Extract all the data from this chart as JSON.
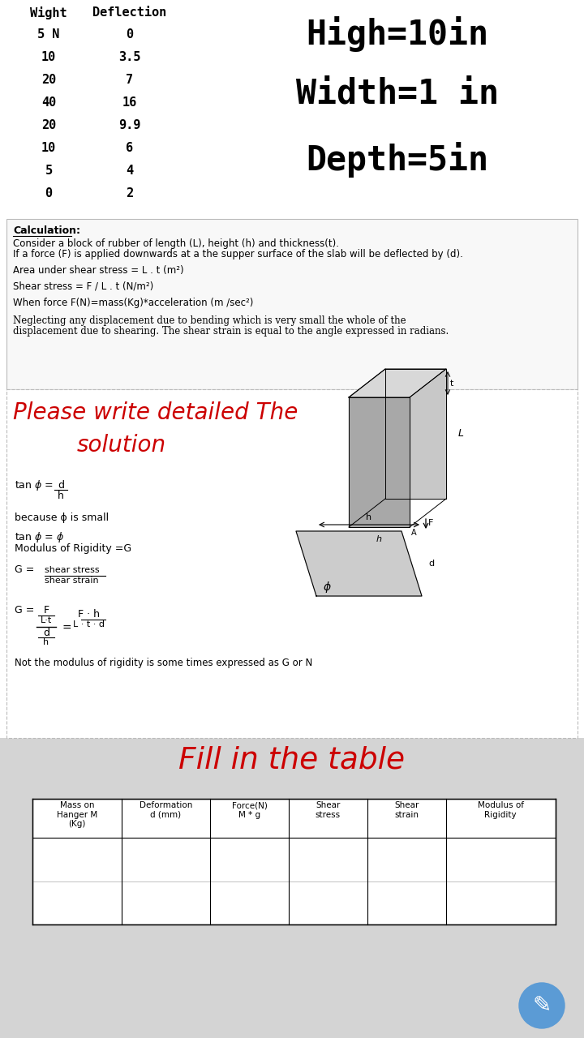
{
  "bg_color": "#ffffff",
  "header_col1": "Wight",
  "header_col2": "Deflection",
  "table_data": [
    [
      "5 N",
      "0"
    ],
    [
      "10",
      "3.5"
    ],
    [
      "20",
      "7"
    ],
    [
      "40",
      "16"
    ],
    [
      "20",
      "9.9"
    ],
    [
      "10",
      "6"
    ],
    [
      "5",
      "4"
    ],
    [
      "0",
      "2"
    ]
  ],
  "specs": [
    "High=10in",
    "Width=1 in",
    "Depth=5in"
  ],
  "calc_title": "Calculation:",
  "calc_line1": "Consider a block of rubber of length (L), height (h) and thickness(t).",
  "calc_line2": "If a force (F) is applied downwards at a the supper surface of the slab will be deflected by (d).",
  "calc_line3": "Area under shear stress = L . t (m²)",
  "calc_line4": "Shear stress = F / L . t (N/m²)",
  "calc_line5": "When force F(N)=mass(Kg)*acceleration (m /sec²)",
  "calc_line6": "Neglecting any displacement due to bending which is very small the whole of the",
  "calc_line7": "displacement due to shearing. The shear strain is equal to the angle expressed in radians.",
  "please_line1": "Please write detailed The",
  "please_line2": "solution",
  "math1": "tan ϕ =",
  "math2": "because ϕ is small",
  "math3": "tan ϕ = ϕ",
  "math4": "Modulus of Rigidity =G",
  "math5": "shear stress",
  "math6": "shear strain",
  "math7": "Not the modulus of rigidity is some times expressed as G or N",
  "fill_title": "Fill in the table",
  "table_headers": [
    "Mass on\nHanger M\n(Kg)",
    "Deformation\nd (mm)",
    "Force(N)\nM * g",
    "Shear\nstress",
    "Shear\nstrain",
    "Modulus of\nRigidity"
  ],
  "font_color": "#000000",
  "red_color": "#cc0000",
  "pencil_color": "#5b9bd5",
  "gray_bg": "#d4d4d4",
  "light_gray": "#f0f0f0",
  "section_border": "#bbbbbb",
  "top_bg": "#ffffff"
}
